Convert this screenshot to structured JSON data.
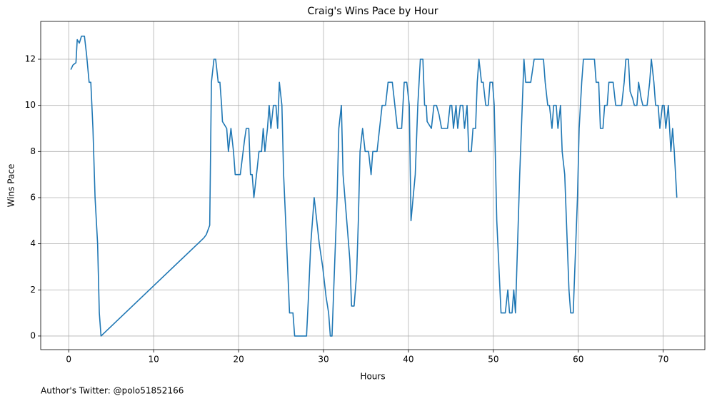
{
  "chart_data": {
    "type": "line",
    "title": "Craig's Wins Pace by Hour",
    "xlabel": "Hours",
    "ylabel": "Wins Pace",
    "annotation": "Author's Twitter: @polo51852166",
    "x": [
      0.25,
      0.5,
      0.85,
      1.0,
      1.25,
      1.5,
      1.85,
      2.1,
      2.4,
      2.6,
      2.85,
      3.1,
      3.4,
      3.6,
      3.8,
      15.9,
      16.2,
      16.6,
      16.8,
      17.1,
      17.3,
      17.6,
      17.8,
      18.0,
      18.1,
      18.6,
      18.8,
      19.1,
      19.4,
      19.6,
      20.2,
      20.7,
      20.9,
      21.2,
      21.4,
      21.6,
      21.8,
      22.2,
      22.4,
      22.7,
      22.9,
      23.1,
      23.4,
      23.6,
      23.8,
      24.1,
      24.4,
      24.6,
      24.8,
      25.1,
      25.3,
      25.6,
      26.0,
      26.4,
      26.6,
      27.0,
      27.5,
      28.0,
      28.2,
      28.5,
      28.9,
      29.2,
      29.5,
      29.9,
      30.3,
      30.6,
      30.8,
      31.0,
      31.3,
      31.6,
      31.8,
      32.1,
      32.3,
      32.8,
      33.1,
      33.3,
      33.6,
      33.9,
      34.1,
      34.3,
      34.6,
      34.9,
      35.3,
      35.6,
      35.8,
      36.3,
      36.6,
      36.9,
      37.3,
      37.6,
      38.1,
      38.4,
      38.7,
      39.2,
      39.5,
      39.8,
      40.1,
      40.3,
      40.8,
      41.1,
      41.4,
      41.7,
      41.9,
      42.1,
      42.2,
      42.7,
      43.0,
      43.3,
      43.6,
      43.9,
      44.6,
      44.9,
      45.1,
      45.3,
      45.6,
      45.8,
      46.1,
      46.4,
      46.6,
      46.9,
      47.1,
      47.4,
      47.6,
      47.9,
      48.1,
      48.3,
      48.6,
      48.8,
      49.1,
      49.4,
      49.6,
      49.9,
      50.1,
      50.4,
      50.9,
      51.4,
      51.7,
      51.9,
      52.2,
      52.4,
      52.6,
      53.1,
      53.4,
      53.6,
      53.8,
      54.4,
      54.8,
      55.9,
      56.1,
      56.4,
      56.6,
      56.9,
      57.1,
      57.4,
      57.6,
      57.9,
      58.1,
      58.4,
      58.6,
      58.9,
      59.1,
      59.4,
      59.6,
      59.9,
      60.1,
      60.4,
      60.6,
      61.9,
      62.1,
      62.4,
      62.6,
      62.9,
      63.1,
      63.4,
      63.6,
      64.1,
      64.4,
      65.1,
      65.4,
      65.6,
      65.9,
      66.1,
      66.4,
      66.6,
      66.9,
      67.1,
      67.4,
      67.6,
      68.1,
      68.4,
      68.6,
      68.9,
      69.1,
      69.4,
      69.6,
      69.9,
      70.1,
      70.3,
      70.6,
      70.9,
      71.1,
      71.3,
      71.6
    ],
    "values": [
      11.55,
      11.75,
      11.85,
      12.85,
      12.7,
      13,
      13,
      12.2,
      11,
      11,
      9,
      6,
      4,
      1,
      0,
      4.25,
      4.4,
      4.8,
      11,
      12,
      12,
      11,
      11,
      10,
      9.3,
      9,
      8,
      9,
      8,
      7,
      7,
      8.5,
      9,
      9,
      7,
      7,
      6,
      7.3,
      8,
      8,
      9,
      8,
      9,
      10,
      9,
      10,
      10,
      9,
      11,
      10,
      7,
      4.5,
      1,
      1,
      0,
      0,
      0,
      0,
      1.5,
      4,
      6,
      5,
      4,
      3,
      1.7,
      1,
      0,
      0,
      3,
      6,
      9,
      10,
      7,
      4.7,
      3.3,
      1.3,
      1.3,
      2.7,
      5,
      8,
      9,
      8,
      8,
      7,
      8,
      8,
      9,
      10,
      10,
      11,
      11,
      10,
      9,
      9,
      11,
      11,
      10,
      5,
      7,
      10,
      12,
      12,
      10,
      10,
      9.3,
      9,
      10,
      10,
      9.6,
      9,
      9,
      10,
      10,
      9,
      10,
      9,
      10,
      10,
      9,
      10,
      8,
      8,
      9,
      9,
      11,
      12,
      11,
      11,
      10,
      10,
      11,
      11,
      10,
      5,
      1,
      1,
      2,
      1,
      1,
      2,
      1,
      7,
      10,
      12,
      11,
      11,
      12,
      12,
      11,
      10,
      10,
      9,
      10,
      10,
      9,
      10,
      8,
      7,
      5,
      2,
      1,
      1,
      3,
      6,
      9,
      11,
      12,
      12,
      11,
      11,
      9,
      9,
      10,
      10,
      11,
      11,
      10,
      10,
      11,
      12,
      12,
      10.6,
      10.3,
      10,
      10,
      11,
      10.3,
      10,
      10,
      11,
      12,
      11,
      10,
      10,
      9,
      10,
      10,
      9,
      10,
      8,
      9,
      8,
      6
    ],
    "color": "#1f77b4",
    "xlim": [
      -3.3,
      74.9
    ],
    "ylim": [
      -0.59,
      13.64
    ],
    "xticks": [
      0,
      10,
      20,
      30,
      40,
      50,
      60,
      70
    ],
    "yticks": [
      0,
      2,
      4,
      6,
      8,
      10,
      12
    ],
    "grid": true
  }
}
